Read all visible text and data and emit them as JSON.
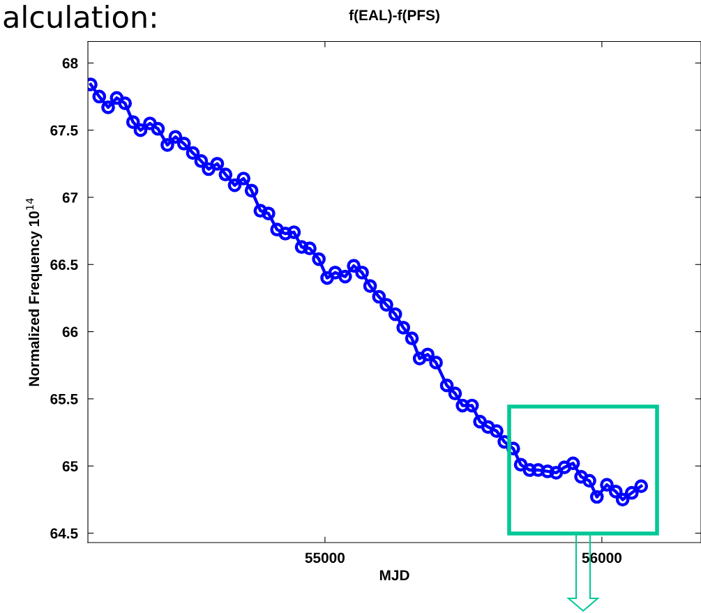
{
  "chart_data": {
    "type": "line",
    "title": "f(EAL)-f(PFS)",
    "xlabel": "MJD",
    "ylabel": "Normalized Frequency 10$^{14}$",
    "annotations": [
      "alculation:"
    ],
    "x": [
      54154,
      54185,
      54217,
      54248,
      54278,
      54307,
      54334,
      54368,
      54397,
      54431,
      54460,
      54491,
      54523,
      54553,
      54580,
      54611,
      54641,
      54674,
      54706,
      54735,
      54767,
      54796,
      54827,
      54857,
      54888,
      54916,
      54945,
      54978,
      55008,
      55037,
      55073,
      55104,
      55134,
      55163,
      55195,
      55222,
      55254,
      55283,
      55314,
      55342,
      55371,
      55401,
      55440,
      55470,
      55497,
      55531,
      55560,
      55589,
      55620,
      55648,
      55680,
      55707,
      55739,
      55770,
      55804,
      55835,
      55865,
      55896,
      55925,
      55955,
      55982,
      56018,
      56050,
      56075,
      56108,
      56142
    ],
    "series": [
      {
        "color": "#0000ff",
        "values": [
          67.84,
          67.75,
          67.67,
          67.74,
          67.7,
          67.56,
          67.5,
          67.55,
          67.51,
          67.39,
          67.45,
          67.4,
          67.33,
          67.27,
          67.21,
          67.25,
          67.17,
          67.09,
          67.14,
          67.05,
          66.9,
          66.88,
          66.76,
          66.73,
          66.74,
          66.63,
          66.62,
          66.54,
          66.4,
          66.44,
          66.41,
          66.49,
          66.44,
          66.34,
          66.26,
          66.2,
          66.13,
          66.03,
          65.95,
          65.8,
          65.83,
          65.77,
          65.6,
          65.54,
          65.45,
          65.45,
          65.33,
          65.29,
          65.26,
          65.18,
          65.13,
          65.01,
          64.97,
          64.97,
          64.96,
          64.95,
          64.99,
          65.02,
          64.92,
          64.89,
          64.77,
          64.86,
          64.81,
          64.75,
          64.8,
          64.85
        ]
      }
    ],
    "marker": "circle",
    "line_style": "solid",
    "grid": false,
    "legend": false,
    "xlim": [
      54144,
      56358
    ],
    "ylim": [
      64.43,
      68.16
    ],
    "xticks": [
      55000,
      56000
    ],
    "yticks": [
      64.5,
      65,
      65.5,
      66,
      66.5,
      67,
      67.5,
      68
    ]
  }
}
